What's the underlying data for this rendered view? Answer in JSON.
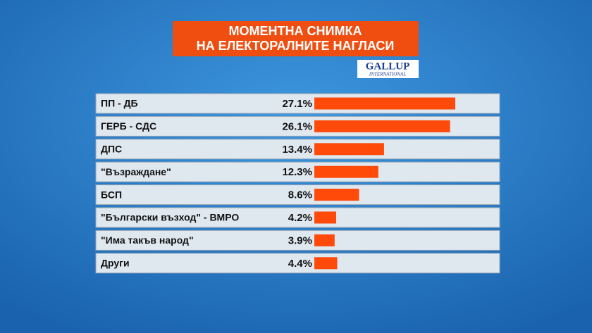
{
  "chart_data": {
    "type": "bar",
    "title": [
      "МОМЕНТНА СНИМКА",
      "НА ЕЛЕКТОРАЛНИТЕ НАГЛАСИ"
    ],
    "logo": [
      "GALLUP",
      "INTERNATIONAL"
    ],
    "categories": [
      "ПП - ДБ",
      "ГЕРБ - СДС",
      "ДПС",
      "\"Възраждане\"",
      "БСП",
      "\"Български възход\" - ВМРО",
      "\"Има такъв народ\"",
      "Други"
    ],
    "values": [
      27.1,
      26.1,
      13.4,
      12.3,
      8.6,
      4.2,
      3.9,
      4.4
    ],
    "value_labels": [
      "27.1%",
      "26.1%",
      "13.4%",
      "12.3%",
      "8.6%",
      "4.2%",
      "3.9%",
      "4.4%"
    ],
    "color": "#ff4a0a"
  }
}
